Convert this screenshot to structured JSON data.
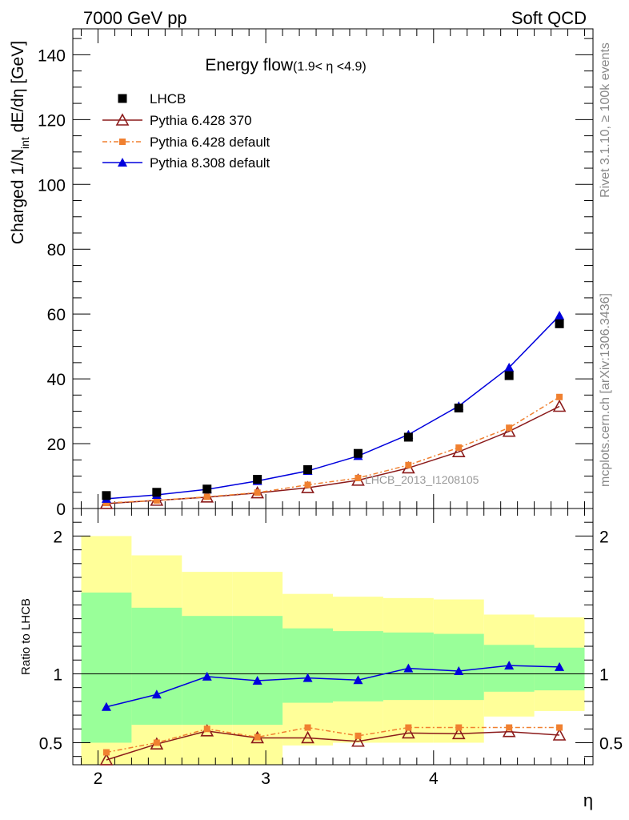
{
  "header": {
    "left": "7000 GeV pp",
    "right": "Soft QCD"
  },
  "side_labels": {
    "rivet": "Rivet 3.1.10, ≥ 100k events",
    "mcplots": "mcplots.cern.ch [arXiv:1306.3436]"
  },
  "watermark": "LHCB_2013_I1208105",
  "colors": {
    "data": "#000000",
    "p6_370": "#8b1a1a",
    "p6_default": "#f08030",
    "p8_default": "#0000dd",
    "band_outer": "#ffff99",
    "band_inner": "#99ff99"
  },
  "chart_data": {
    "type": "line",
    "x_edges": [
      1.9,
      2.2,
      2.5,
      2.8,
      3.1,
      3.4,
      3.7,
      4.0,
      4.3,
      4.6,
      4.9
    ],
    "x": [
      2.05,
      2.35,
      2.65,
      2.95,
      3.25,
      3.55,
      3.85,
      4.15,
      4.45,
      4.75
    ],
    "xlim": [
      1.85,
      4.95
    ],
    "xlabel": "η",
    "xticks": [
      2,
      3,
      4
    ],
    "main": {
      "title_main": "Energy flow",
      "title_sub": "(1.9< η <4.9)",
      "ylabel_parts": [
        "Charged 1/N",
        "int",
        " dE/dη [GeV]"
      ],
      "ylim": [
        0,
        148
      ],
      "yticks": [
        0,
        20,
        40,
        60,
        80,
        100,
        120,
        140
      ],
      "legend_position": "top-left",
      "series": [
        {
          "name": "LHCB",
          "key": "data",
          "marker": "square",
          "values": [
            4.0,
            5.0,
            6.0,
            9.0,
            12.0,
            17.0,
            22.0,
            31.0,
            41.0,
            57.0
          ]
        },
        {
          "name": "Pythia 6.428 370",
          "key": "p6_370",
          "marker": "open-triangle",
          "values": [
            1.5,
            2.5,
            3.5,
            4.8,
            6.4,
            8.7,
            12.5,
            17.5,
            23.8,
            31.5
          ]
        },
        {
          "name": "Pythia 6.428 default",
          "key": "p6_default",
          "marker": "square-small",
          "dashed": true,
          "values": [
            1.7,
            2.5,
            3.6,
            4.9,
            7.3,
            9.4,
            13.4,
            18.8,
            24.9,
            34.4
          ]
        },
        {
          "name": "Pythia 8.308 default",
          "key": "p8_default",
          "marker": "triangle",
          "values": [
            3.0,
            4.2,
            5.9,
            8.5,
            11.6,
            16.2,
            22.8,
            31.6,
            43.5,
            59.5
          ]
        }
      ]
    },
    "ratio": {
      "ylabel": "Ratio to LHCB",
      "ylim": [
        0.34,
        2.2
      ],
      "yticks": [
        0.5,
        1,
        2
      ],
      "band_outer": [
        [
          0.3,
          2.0
        ],
        [
          0.3,
          1.86
        ],
        [
          0.3,
          1.74
        ],
        [
          0.3,
          1.74
        ],
        [
          0.48,
          1.58
        ],
        [
          0.5,
          1.56
        ],
        [
          0.5,
          1.55
        ],
        [
          0.5,
          1.54
        ],
        [
          0.69,
          1.43
        ],
        [
          0.73,
          1.41
        ]
      ],
      "band_inner": [
        [
          0.5,
          1.59
        ],
        [
          0.63,
          1.48
        ],
        [
          0.63,
          1.42
        ],
        [
          0.63,
          1.42
        ],
        [
          0.79,
          1.33
        ],
        [
          0.8,
          1.31
        ],
        [
          0.81,
          1.3
        ],
        [
          0.81,
          1.29
        ],
        [
          0.87,
          1.21
        ],
        [
          0.88,
          1.19
        ]
      ],
      "series": [
        {
          "name": "Pythia 6.428 370",
          "key": "p6_370",
          "marker": "open-triangle",
          "values": [
            0.375,
            0.49,
            0.585,
            0.535,
            0.535,
            0.51,
            0.57,
            0.565,
            0.58,
            0.555
          ]
        },
        {
          "name": "Pythia 6.428 default",
          "key": "p6_default",
          "marker": "square-small",
          "dashed": true,
          "values": [
            0.43,
            0.5,
            0.6,
            0.54,
            0.61,
            0.55,
            0.61,
            0.61,
            0.61,
            0.61
          ]
        },
        {
          "name": "Pythia 8.308 default",
          "key": "p8_default",
          "marker": "triangle",
          "values": [
            0.76,
            0.85,
            0.98,
            0.95,
            0.97,
            0.955,
            1.04,
            1.02,
            1.06,
            1.05
          ]
        }
      ]
    }
  }
}
